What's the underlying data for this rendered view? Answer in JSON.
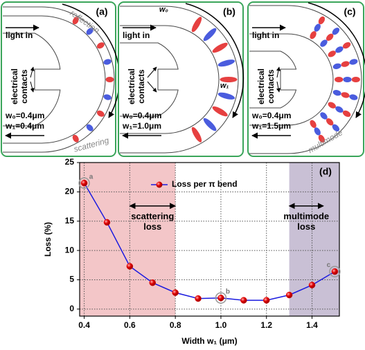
{
  "panels": [
    {
      "label": "(a)",
      "light_in": "light in",
      "contacts": [
        "electrical",
        "contacts"
      ],
      "w0": "w₀=0.4μm",
      "w1": "w₁=0.4μm",
      "note_top": "reflection",
      "note_bottom": "scattering"
    },
    {
      "label": "(b)",
      "light_in": "light in",
      "contacts": [
        "electrical",
        "contacts"
      ],
      "w0": "w₀=0.4μm",
      "w1": "w₁=1.0μm",
      "width_mark_top": "w₀",
      "width_mark_inner": "w₁"
    },
    {
      "label": "(c)",
      "light_in": "light in",
      "contacts": [
        "electrical",
        "contacts"
      ],
      "w0": "w₀=0.4μm",
      "w1": "w₁=1.5μm",
      "note_bottom": "multimode"
    }
  ],
  "chart_data": {
    "type": "line",
    "title": "(d)",
    "x": [
      0.4,
      0.5,
      0.6,
      0.7,
      0.8,
      0.9,
      1.0,
      1.1,
      1.2,
      1.3,
      1.4,
      1.5
    ],
    "series": [
      {
        "name": "Loss per π bend",
        "color": "#1a1adf",
        "marker_color": "#e10000",
        "values": [
          21.5,
          14.8,
          7.3,
          4.5,
          2.8,
          1.8,
          1.9,
          1.5,
          1.5,
          2.4,
          4.1,
          6.4
        ]
      }
    ],
    "xlabel": "Width w₁ (μm)",
    "ylabel": "Loss (%)",
    "xlim": [
      0.38,
      1.52
    ],
    "ylim": [
      -1.2,
      25
    ],
    "xticks": [
      0.4,
      0.6,
      0.8,
      {
        "value": 1,
        "label": "1.0"
      },
      1.2,
      1.4
    ],
    "yticks": [
      0,
      5,
      10,
      15,
      20,
      25
    ],
    "grid": true,
    "legend": "top",
    "shaded_regions": [
      {
        "from": 0.38,
        "to": 0.8,
        "color": "#f3c6c8"
      },
      {
        "from": 1.3,
        "to": 1.52,
        "color": "#c9c0d5"
      }
    ],
    "annotations": [
      {
        "lines": [
          "scattering",
          "loss"
        ],
        "arrow_x": [
          0.6,
          0.8
        ],
        "arrow_y": 17.6
      },
      {
        "lines": [
          "multimode",
          "loss"
        ],
        "arrow_x": [
          1.3,
          1.45
        ],
        "arrow_y": 17.6
      }
    ],
    "point_labels": [
      {
        "index": 0,
        "text": "a"
      },
      {
        "index": 6,
        "text": "b"
      },
      {
        "index": 11,
        "text": "c"
      }
    ]
  }
}
